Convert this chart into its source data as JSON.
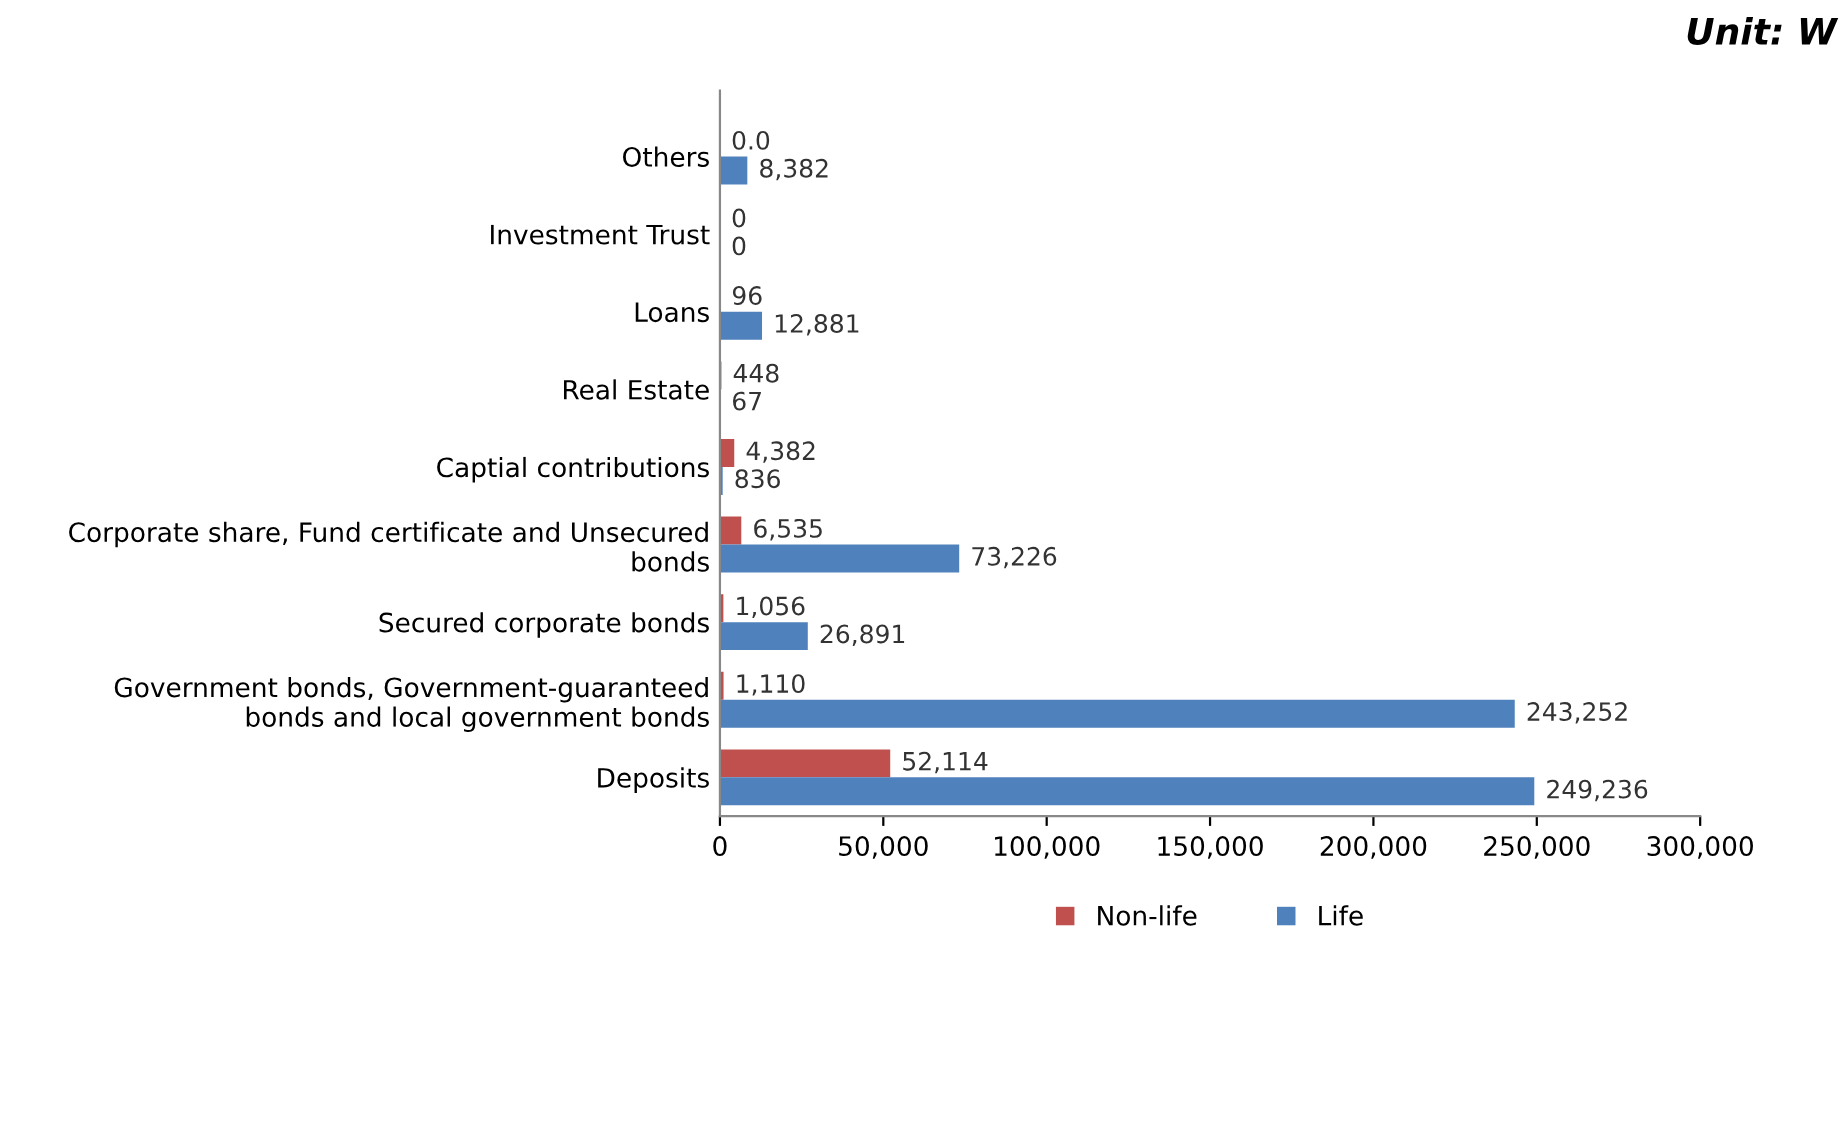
{
  "chart_data": {
    "type": "bar",
    "orientation": "horizontal",
    "categories": [
      "Others",
      "Investment Trust",
      "Loans",
      "Real Estate",
      "Captial contributions",
      "Corporate share, Fund certificate and Unsecured\nbonds",
      "Secured corporate bonds",
      "Government bonds, Government-guaranteed\nbonds and local government bonds",
      "Deposits"
    ],
    "series": [
      {
        "name": "Non-life",
        "color": "#c0504d",
        "values": [
          0,
          0,
          96,
          448,
          4382,
          6535,
          1056,
          1110,
          52114
        ],
        "value_labels": [
          "0.0",
          "0",
          "96",
          "448",
          "4,382",
          "6,535",
          "1,056",
          "1,110",
          "52,114"
        ]
      },
      {
        "name": "Life",
        "color": "#4f81bd",
        "values": [
          8382,
          0,
          12881,
          67,
          836,
          73226,
          26891,
          243252,
          249236
        ],
        "value_labels": [
          "8,382",
          "0",
          "12,881",
          "67",
          "836",
          "73,226",
          "26,891",
          "243,252",
          "249,236"
        ]
      }
    ],
    "xlim": [
      0,
      300000
    ],
    "xticks": [
      {
        "value": 0,
        "label": "0"
      },
      {
        "value": 50000,
        "label": "50,000"
      },
      {
        "value": 100000,
        "label": "100,000"
      },
      {
        "value": 150000,
        "label": "150,000"
      },
      {
        "value": 200000,
        "label": "200,000"
      },
      {
        "value": 250000,
        "label": "250,000"
      },
      {
        "value": 300000,
        "label": "300,000"
      }
    ],
    "annotations": [
      "Unit: W"
    ],
    "legend": "bottom",
    "grid": false
  }
}
